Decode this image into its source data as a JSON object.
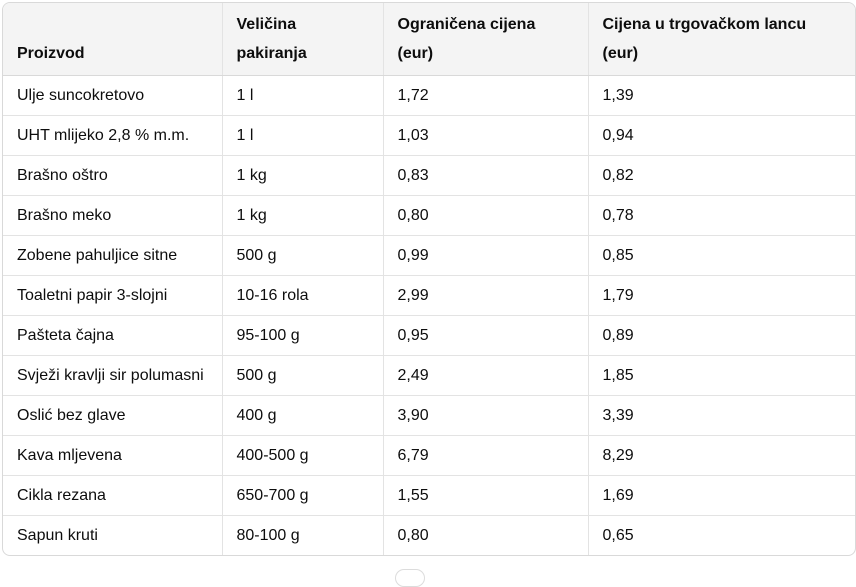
{
  "table": {
    "headers": [
      "Proizvod",
      "Veličina pakiranja",
      "Ograničena cijena (eur)",
      "Cijena u trgovačkom lancu (eur)"
    ],
    "rows": [
      [
        "Ulje suncokretovo",
        "1 l",
        "1,72",
        "1,39"
      ],
      [
        "UHT mlijeko 2,8 % m.m.",
        "1 l",
        "1,03",
        "0,94"
      ],
      [
        "Brašno oštro",
        "1 kg",
        "0,83",
        "0,82"
      ],
      [
        "Brašno meko",
        "1 kg",
        "0,80",
        "0,78"
      ],
      [
        "Zobene pahuljice sitne",
        "500 g",
        "0,99",
        "0,85"
      ],
      [
        "Toaletni papir 3-slojni",
        "10-16 rola",
        "2,99",
        "1,79"
      ],
      [
        "Pašteta čajna",
        "95-100 g",
        "0,95",
        "0,89"
      ],
      [
        "Svježi kravlji sir polumasni",
        "500 g",
        "2,49",
        "1,85"
      ],
      [
        "Oslić bez glave",
        "400 g",
        "3,90",
        "3,39"
      ],
      [
        "Kava mljevena",
        "400-500 g",
        "6,79",
        "8,29"
      ],
      [
        "Cikla rezana",
        "650-700 g",
        "1,55",
        "1,69"
      ],
      [
        "Sapun kruti",
        "80-100 g",
        "0,80",
        "0,65"
      ]
    ]
  }
}
